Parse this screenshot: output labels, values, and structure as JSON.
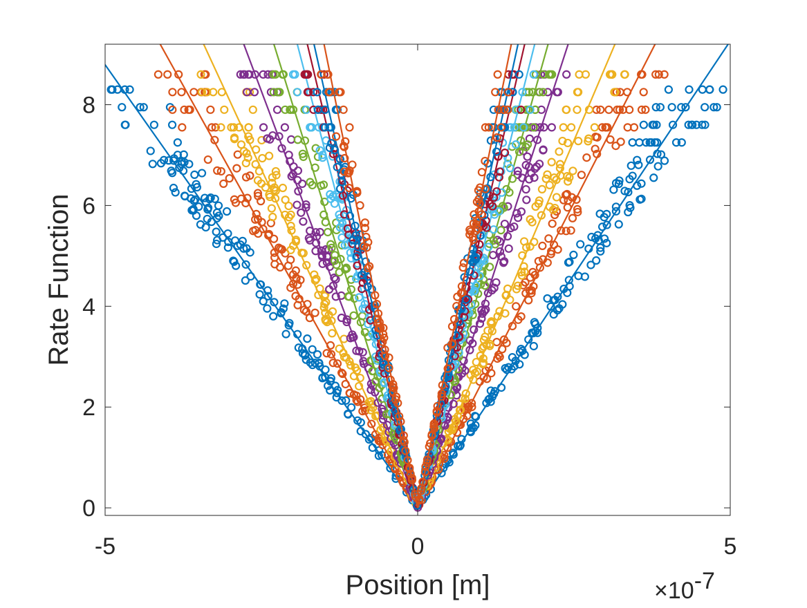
{
  "chart_data": {
    "type": "scatter",
    "title": "",
    "xlabel": "Position [m]",
    "ylabel": "Rate Function",
    "x_multiplier_label": "×10",
    "x_multiplier_exponent": "-7",
    "xlim": [
      -5,
      5
    ],
    "ylim": [
      -0.15,
      9.2
    ],
    "x_ticks": [
      -5,
      0,
      5
    ],
    "x_tick_labels": [
      "-5",
      "0",
      "5"
    ],
    "y_ticks": [
      0,
      2,
      4,
      6,
      8
    ],
    "y_tick_labels": [
      "0",
      "2",
      "4",
      "6",
      "8"
    ],
    "grid": false,
    "legend": "none",
    "marker": "circle",
    "series": [
      {
        "name": "series-1",
        "color": "#0072BD",
        "left_x_at_max": -4.72,
        "right_x_at_max": 4.48,
        "max_y": 8.3,
        "n_points": 150
      },
      {
        "name": "series-2",
        "color": "#D95319",
        "left_x_at_max": -3.85,
        "right_x_at_max": 3.55,
        "max_y": 8.6,
        "n_points": 120
      },
      {
        "name": "series-3",
        "color": "#EDB120",
        "left_x_at_max": -3.2,
        "right_x_at_max": 2.95,
        "max_y": 8.6,
        "n_points": 110
      },
      {
        "name": "series-4",
        "color": "#7E2F8E",
        "left_x_at_max": -2.6,
        "right_x_at_max": 2.25,
        "max_y": 8.6,
        "n_points": 100
      },
      {
        "name": "series-5",
        "color": "#77AC30",
        "left_x_at_max": -2.15,
        "right_x_at_max": 1.95,
        "max_y": 8.6,
        "n_points": 80
      },
      {
        "name": "series-6",
        "color": "#4DBEEE",
        "left_x_at_max": -1.8,
        "right_x_at_max": 1.75,
        "max_y": 8.6,
        "n_points": 80
      },
      {
        "name": "series-7",
        "color": "#A2142F",
        "left_x_at_max": -1.65,
        "right_x_at_max": 1.6,
        "max_y": 8.6,
        "n_points": 70
      },
      {
        "name": "series-8",
        "color": "#0072BD",
        "left_x_at_max": -1.55,
        "right_x_at_max": 1.5,
        "max_y": 8.6,
        "n_points": 70
      },
      {
        "name": "series-9",
        "color": "#D95319",
        "left_x_at_max": -1.4,
        "right_x_at_max": 1.4,
        "max_y": 8.6,
        "n_points": 70
      }
    ]
  }
}
